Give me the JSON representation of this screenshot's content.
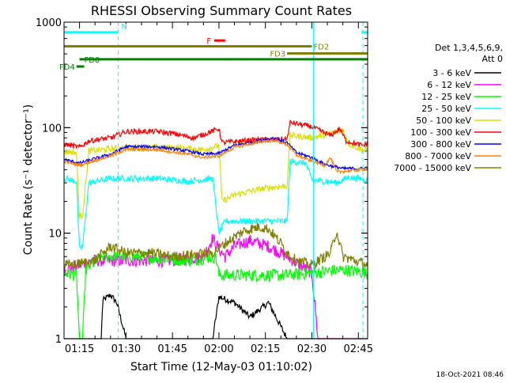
{
  "chart_data": {
    "type": "line",
    "title": "RHESSI Observing Summary Count Rates",
    "xlabel": "Start Time (12-May-03 01:10:02)",
    "ylabel": "Count Rate (s⁻¹ detector⁻¹)",
    "yscale": "log",
    "ylim": [
      1,
      1000
    ],
    "xlim_minutes": [
      0,
      98
    ],
    "y_ticks": [
      {
        "value": 1,
        "label": "1"
      },
      {
        "value": 10,
        "label": "10"
      },
      {
        "value": 100,
        "label": "100"
      },
      {
        "value": 1000,
        "label": "1000"
      }
    ],
    "x_ticks": [
      {
        "t": 5,
        "label": "01:15"
      },
      {
        "t": 20,
        "label": "01:30"
      },
      {
        "t": 35,
        "label": "01:45"
      },
      {
        "t": 50,
        "label": "02:00"
      },
      {
        "t": 65,
        "label": "02:15"
      },
      {
        "t": 80,
        "label": "02:30"
      },
      {
        "t": 95,
        "label": "02:45"
      }
    ],
    "legend_header": [
      "Det 1,3,4,5,6,9,",
      "Att 0"
    ],
    "series": [
      {
        "name": "3 - 6 keV",
        "color": "#000000",
        "points": [
          [
            0,
            1
          ],
          [
            12,
            1
          ],
          [
            12.5,
            2.3
          ],
          [
            15,
            2.6
          ],
          [
            17,
            2.2
          ],
          [
            20,
            1
          ],
          [
            48,
            1
          ],
          [
            50,
            2.5
          ],
          [
            55,
            2.2
          ],
          [
            60,
            1.6
          ],
          [
            66,
            2.2
          ],
          [
            72,
            1
          ],
          [
            98,
            1
          ]
        ]
      },
      {
        "name": "6 - 12 keV",
        "color": "#ff00ff",
        "points": [
          [
            0,
            4.5
          ],
          [
            10,
            5.5
          ],
          [
            20,
            5.5
          ],
          [
            35,
            5.5
          ],
          [
            45,
            6
          ],
          [
            48,
            9
          ],
          [
            50,
            7
          ],
          [
            52,
            6
          ],
          [
            55,
            7.5
          ],
          [
            60,
            8.5
          ],
          [
            66,
            7.5
          ],
          [
            72,
            6
          ],
          [
            80,
            4.2
          ],
          [
            82,
            1
          ],
          [
            98,
            1
          ]
        ]
      },
      {
        "name": "12 - 25 keV",
        "color": "#00ff00",
        "points": [
          [
            0,
            4.2
          ],
          [
            4,
            4
          ],
          [
            5,
            1
          ],
          [
            6,
            1
          ],
          [
            7,
            4.5
          ],
          [
            12,
            6
          ],
          [
            25,
            6
          ],
          [
            40,
            5.5
          ],
          [
            49,
            6
          ],
          [
            50,
            4
          ],
          [
            55,
            4
          ],
          [
            65,
            4
          ],
          [
            72,
            4
          ],
          [
            80,
            4.2
          ],
          [
            90,
            4.5
          ],
          [
            98,
            4.2
          ]
        ]
      },
      {
        "name": "25 - 50 keV",
        "color": "#00ffff",
        "points": [
          [
            0,
            33
          ],
          [
            4,
            31
          ],
          [
            5,
            7
          ],
          [
            6,
            7.5
          ],
          [
            8,
            30
          ],
          [
            15,
            33
          ],
          [
            30,
            33
          ],
          [
            40,
            31
          ],
          [
            48,
            33
          ],
          [
            50,
            10
          ],
          [
            52,
            13
          ],
          [
            60,
            13
          ],
          [
            72,
            13
          ],
          [
            73,
            48
          ],
          [
            78,
            46
          ],
          [
            80,
            32
          ],
          [
            88,
            30
          ],
          [
            92,
            34
          ],
          [
            98,
            32
          ]
        ]
      },
      {
        "name": "50 - 100 keV",
        "color": "#dddd00",
        "points": [
          [
            0,
            60
          ],
          [
            4,
            58
          ],
          [
            5,
            14
          ],
          [
            6,
            15
          ],
          [
            8,
            60
          ],
          [
            20,
            65
          ],
          [
            35,
            65
          ],
          [
            45,
            62
          ],
          [
            50,
            68
          ],
          [
            51,
            20
          ],
          [
            55,
            23
          ],
          [
            60,
            25
          ],
          [
            66,
            27
          ],
          [
            72,
            28
          ],
          [
            73,
            85
          ],
          [
            80,
            80
          ],
          [
            86,
            88
          ],
          [
            90,
            95
          ],
          [
            92,
            70
          ],
          [
            96,
            62
          ],
          [
            98,
            60
          ]
        ]
      },
      {
        "name": "100 - 300 keV",
        "color": "#ff0000",
        "points": [
          [
            0,
            70
          ],
          [
            5,
            65
          ],
          [
            8,
            75
          ],
          [
            15,
            80
          ],
          [
            20,
            92
          ],
          [
            30,
            92
          ],
          [
            35,
            88
          ],
          [
            42,
            80
          ],
          [
            50,
            98
          ],
          [
            51,
            72
          ],
          [
            60,
            76
          ],
          [
            72,
            78
          ],
          [
            73,
            112
          ],
          [
            80,
            102
          ],
          [
            86,
            84
          ],
          [
            89,
            98
          ],
          [
            91,
            75
          ],
          [
            96,
            68
          ],
          [
            98,
            70
          ]
        ]
      },
      {
        "name": "300 - 800 keV",
        "color": "#0000ff",
        "points": [
          [
            0,
            50
          ],
          [
            5,
            46
          ],
          [
            8,
            49
          ],
          [
            15,
            56
          ],
          [
            20,
            66
          ],
          [
            30,
            66
          ],
          [
            40,
            60
          ],
          [
            45,
            56
          ],
          [
            50,
            57
          ],
          [
            55,
            68
          ],
          [
            60,
            72
          ],
          [
            65,
            78
          ],
          [
            68,
            79
          ],
          [
            72,
            72
          ],
          [
            75,
            58
          ],
          [
            80,
            52
          ],
          [
            84,
            45
          ],
          [
            90,
            41
          ],
          [
            96,
            41
          ],
          [
            98,
            42
          ]
        ]
      },
      {
        "name": "800 - 7000 keV",
        "color": "#ff8000",
        "points": [
          [
            0,
            48
          ],
          [
            5,
            44
          ],
          [
            8,
            47
          ],
          [
            15,
            54
          ],
          [
            20,
            62
          ],
          [
            30,
            62
          ],
          [
            40,
            56
          ],
          [
            45,
            52
          ],
          [
            50,
            54
          ],
          [
            55,
            65
          ],
          [
            60,
            70
          ],
          [
            65,
            75
          ],
          [
            68,
            76
          ],
          [
            72,
            69
          ],
          [
            75,
            55
          ],
          [
            80,
            48
          ],
          [
            84,
            44
          ],
          [
            86,
            52
          ],
          [
            88,
            38
          ],
          [
            96,
            40
          ],
          [
            98,
            41
          ]
        ]
      },
      {
        "name": "7000 - 15000 keV",
        "color": "#808000",
        "points": [
          [
            0,
            5
          ],
          [
            3,
            5
          ],
          [
            10,
            5.5
          ],
          [
            15,
            7.5
          ],
          [
            20,
            6.5
          ],
          [
            28,
            6.5
          ],
          [
            35,
            6
          ],
          [
            48,
            6.5
          ],
          [
            52,
            8
          ],
          [
            58,
            10.5
          ],
          [
            63,
            11.5
          ],
          [
            66,
            11
          ],
          [
            70,
            8
          ],
          [
            72,
            6.5
          ],
          [
            75,
            5.5
          ],
          [
            80,
            5
          ],
          [
            86,
            6.5
          ],
          [
            88,
            10.5
          ],
          [
            90,
            6
          ],
          [
            98,
            5
          ]
        ]
      }
    ],
    "state_bars": [
      {
        "label": "N",
        "color": "#00ffff",
        "segments": [
          [
            0,
            17.5
          ],
          [
            96,
            98
          ]
        ],
        "level": 800
      },
      {
        "label": "F",
        "color": "#ff0000",
        "segments": [
          [
            48.5,
            52
          ]
        ],
        "level": 670
      },
      {
        "label": "FD2",
        "color": "#808000",
        "segments": [
          [
            0,
            80
          ]
        ],
        "level": 590
      },
      {
        "label": "FD3",
        "color": "#808000",
        "segments": [
          [
            72,
            98
          ]
        ],
        "level": 505
      },
      {
        "label": "FD0",
        "color": "#008000",
        "segments": [
          [
            5,
            56
          ],
          [
            56,
            72
          ],
          [
            72,
            98
          ]
        ],
        "level": 445
      },
      {
        "label": "FD4",
        "color": "#008000",
        "segments": [
          [
            4,
            6.5
          ]
        ],
        "level": 380
      }
    ],
    "vertical_markers": [
      {
        "t": 0,
        "color": "#00ffff",
        "style": "solid"
      },
      {
        "t": 17.5,
        "color": "#00ffff",
        "style": "dashed"
      },
      {
        "t": 80.5,
        "color": "#00ffff",
        "style": "solid"
      },
      {
        "t": 96.5,
        "color": "#00ffff",
        "style": "dashed"
      }
    ]
  },
  "footer": {
    "timestamp": "18-Oct-2021 08:46"
  }
}
